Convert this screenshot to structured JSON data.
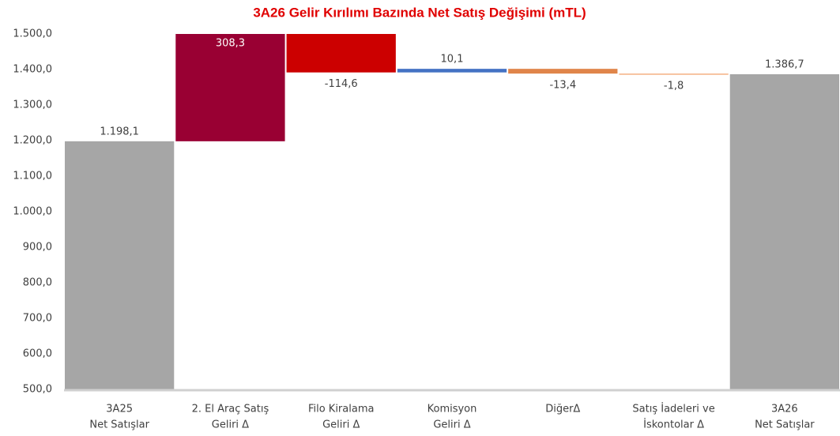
{
  "chart_data": {
    "type": "waterfall",
    "title": "3A26 Gelir Kırılımı Bazında Net Satış Değişimi (mTL)",
    "categories": [
      [
        "3A25",
        "Net Satışlar"
      ],
      [
        "2. El Araç Satış",
        "Geliri Δ"
      ],
      [
        "Filo Kiralama",
        "Geliri Δ"
      ],
      [
        "Komisyon",
        "Geliri Δ"
      ],
      [
        "DiğerΔ"
      ],
      [
        "Satış İadeleri ve",
        "İskontolar Δ"
      ],
      [
        "3A26",
        "Net Satışlar"
      ]
    ],
    "values": [
      1198.1,
      308.3,
      -114.6,
      10.1,
      -13.4,
      -1.8,
      1386.7
    ],
    "value_labels": [
      "1.198,1",
      "308,3",
      "-114,6",
      "10,1",
      "-13,4",
      "-1,8",
      "1.386,7"
    ],
    "totals": [
      true,
      false,
      false,
      false,
      false,
      false,
      true
    ],
    "colors": [
      "#a6a6a6",
      "#990033",
      "#cc0000",
      "#4472c4",
      "#e0854a",
      "#f4b183",
      "#a6a6a6"
    ],
    "ylim": [
      500,
      1500
    ],
    "yticks": [
      {
        "value": 500,
        "label": "500,0"
      },
      {
        "value": 600,
        "label": "600,0"
      },
      {
        "value": 700,
        "label": "700,0"
      },
      {
        "value": 800,
        "label": "800,0"
      },
      {
        "value": 900,
        "label": "900,0"
      },
      {
        "value": 1000,
        "label": "1.000,0"
      },
      {
        "value": 1100,
        "label": "1.100,0"
      },
      {
        "value": 1200,
        "label": "1.200,0"
      },
      {
        "value": 1300,
        "label": "1.300,0"
      },
      {
        "value": 1400,
        "label": "1.400,0"
      },
      {
        "value": 1500,
        "label": "1.500,0"
      }
    ],
    "grid": false
  }
}
